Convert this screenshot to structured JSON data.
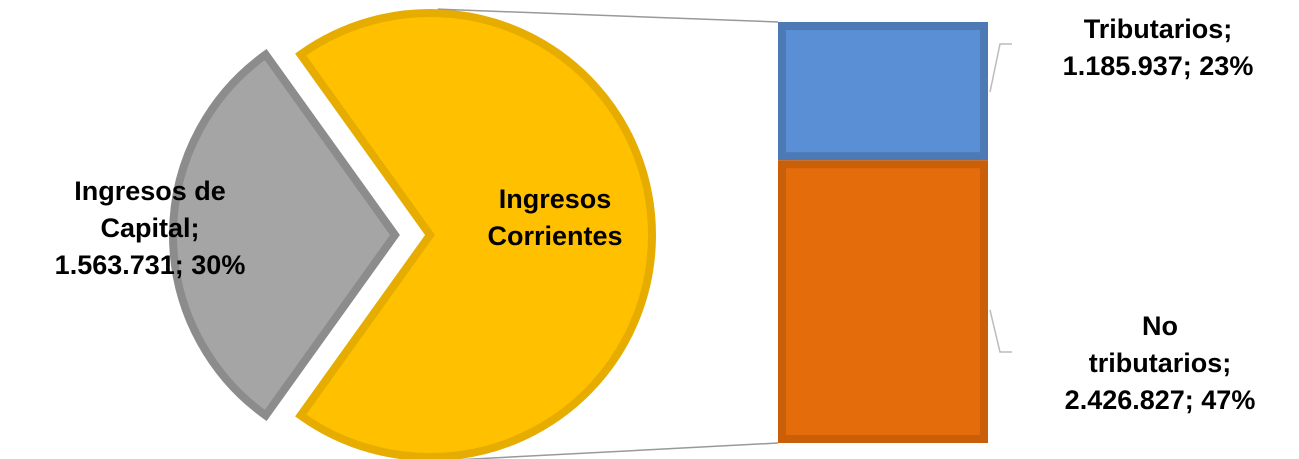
{
  "chart_data": {
    "type": "pie-of-bar",
    "categories": [
      "Ingresos de Capital",
      "Tributarios",
      "No tributarios"
    ],
    "values": [
      1563731,
      1185937,
      2426827
    ],
    "data_labels": [
      "Ingresos de Capital; 1.563.731; 30%",
      "Tributarios; 1.185.937; 23%",
      "No tributarios; 2.426.827; 47%"
    ],
    "group_label": "Ingresos Corrientes",
    "colors": [
      "#A5A5A5",
      "#5B8FD5",
      "#E46C0A"
    ],
    "group_color": "#FFC000"
  }
}
